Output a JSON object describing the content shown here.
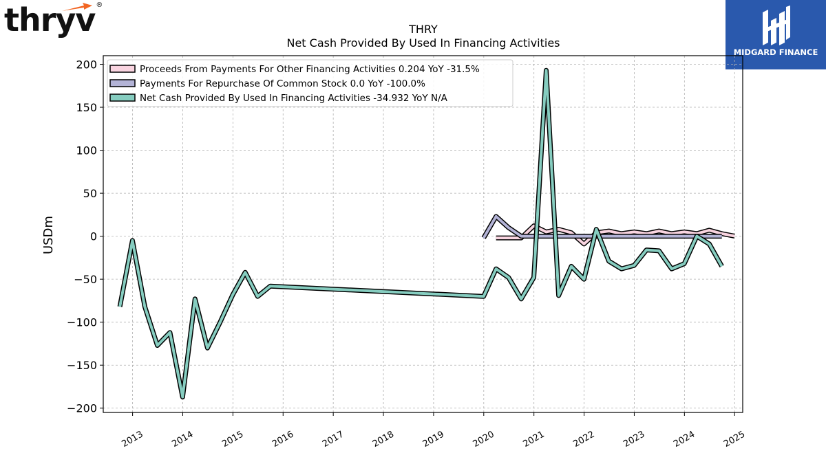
{
  "logos": {
    "left_text": "thryv",
    "left_reg": "®",
    "right_text": "MIDGARD FINANCE"
  },
  "colors": {
    "proceeds": "#f9d4e0",
    "repurchase": "#b3b3d6",
    "net": "#86cdc0",
    "outline": "#000000",
    "right_logo_bg": "#2a59ad"
  },
  "chart_data": {
    "type": "line",
    "title": "THRY",
    "subtitle": "Net Cash Provided By Used In Financing Activities",
    "ylabel": "USDm",
    "xlabel": "",
    "ylim": [
      -205,
      210
    ],
    "xlim": [
      "2012-06-01",
      "2025-03-01"
    ],
    "yticks": [
      200,
      150,
      100,
      50,
      0,
      -50,
      -100,
      -150,
      -200
    ],
    "ytick_labels": [
      "200",
      "150",
      "100",
      "50",
      "0",
      "−50",
      "−100",
      "−150",
      "−200"
    ],
    "xticks": [
      "2013",
      "2014",
      "2015",
      "2016",
      "2017",
      "2018",
      "2019",
      "2020",
      "2021",
      "2022",
      "2023",
      "2024",
      "2025"
    ],
    "grid": true,
    "legend_position": "top-left",
    "series": [
      {
        "key": "proceeds",
        "name": "Proceeds From Payments For Other Financing Activities",
        "legend": "Proceeds From Payments For Other Financing Activities  0.204 YoY -31.5%",
        "points": [
          [
            "2020-03-31",
            -2
          ],
          [
            "2020-06-30",
            -2
          ],
          [
            "2020-09-30",
            -2
          ],
          [
            "2020-12-31",
            12
          ],
          [
            "2021-03-31",
            5
          ],
          [
            "2021-06-30",
            8
          ],
          [
            "2021-09-30",
            4
          ],
          [
            "2021-12-31",
            -9
          ],
          [
            "2022-03-31",
            4
          ],
          [
            "2022-06-30",
            6
          ],
          [
            "2022-09-30",
            3
          ],
          [
            "2022-12-31",
            5
          ],
          [
            "2023-03-31",
            3
          ],
          [
            "2023-06-30",
            6
          ],
          [
            "2023-09-30",
            3
          ],
          [
            "2023-12-31",
            5
          ],
          [
            "2024-03-31",
            3
          ],
          [
            "2024-06-30",
            7
          ],
          [
            "2024-09-30",
            3
          ],
          [
            "2024-12-31",
            0.2
          ]
        ]
      },
      {
        "key": "repurchase",
        "name": "Payments For Repurchase Of Common Stock",
        "legend": "Payments For Repurchase Of Common Stock  0.0 YoY -100.0%",
        "points": [
          [
            "2019-12-31",
            -2
          ],
          [
            "2020-03-31",
            23
          ],
          [
            "2020-06-30",
            10
          ],
          [
            "2020-09-30",
            0
          ],
          [
            "2020-12-31",
            0
          ],
          [
            "2021-03-31",
            0
          ],
          [
            "2021-06-30",
            0
          ],
          [
            "2021-09-30",
            0
          ],
          [
            "2021-12-31",
            0
          ],
          [
            "2022-03-31",
            0
          ],
          [
            "2022-06-30",
            0
          ],
          [
            "2022-09-30",
            0
          ],
          [
            "2022-12-31",
            0
          ],
          [
            "2023-03-31",
            0
          ],
          [
            "2023-06-30",
            0
          ],
          [
            "2023-09-30",
            0
          ],
          [
            "2023-12-31",
            0
          ],
          [
            "2024-03-31",
            0
          ],
          [
            "2024-06-30",
            0
          ],
          [
            "2024-09-30",
            0
          ]
        ]
      },
      {
        "key": "net",
        "name": "Net Cash Provided By Used In Financing Activities",
        "legend": "Net Cash Provided By Used In Financing Activities  -34.932 YoY N/A",
        "points": [
          [
            "2012-09-30",
            -82
          ],
          [
            "2012-12-31",
            -5
          ],
          [
            "2013-03-31",
            -82
          ],
          [
            "2013-06-30",
            -127
          ],
          [
            "2013-09-30",
            -112
          ],
          [
            "2013-12-31",
            -187
          ],
          [
            "2014-03-31",
            -73
          ],
          [
            "2014-06-30",
            -130
          ],
          [
            "2014-09-30",
            -100
          ],
          [
            "2014-12-31",
            -68
          ],
          [
            "2015-03-31",
            -42
          ],
          [
            "2015-06-30",
            -70
          ],
          [
            "2015-09-30",
            -58
          ],
          [
            "2019-12-31",
            -70
          ],
          [
            "2020-03-31",
            -38
          ],
          [
            "2020-06-30",
            -48
          ],
          [
            "2020-09-30",
            -73
          ],
          [
            "2020-12-31",
            -48
          ],
          [
            "2021-03-31",
            193
          ],
          [
            "2021-06-30",
            -69
          ],
          [
            "2021-09-30",
            -35
          ],
          [
            "2021-12-31",
            -50
          ],
          [
            "2022-03-31",
            8
          ],
          [
            "2022-06-30",
            -29
          ],
          [
            "2022-09-30",
            -38
          ],
          [
            "2022-12-31",
            -34
          ],
          [
            "2023-03-31",
            -16
          ],
          [
            "2023-06-30",
            -17
          ],
          [
            "2023-09-30",
            -38
          ],
          [
            "2023-12-31",
            -32
          ],
          [
            "2024-03-31",
            0
          ],
          [
            "2024-06-30",
            -9
          ],
          [
            "2024-09-30",
            -35
          ]
        ]
      }
    ]
  }
}
